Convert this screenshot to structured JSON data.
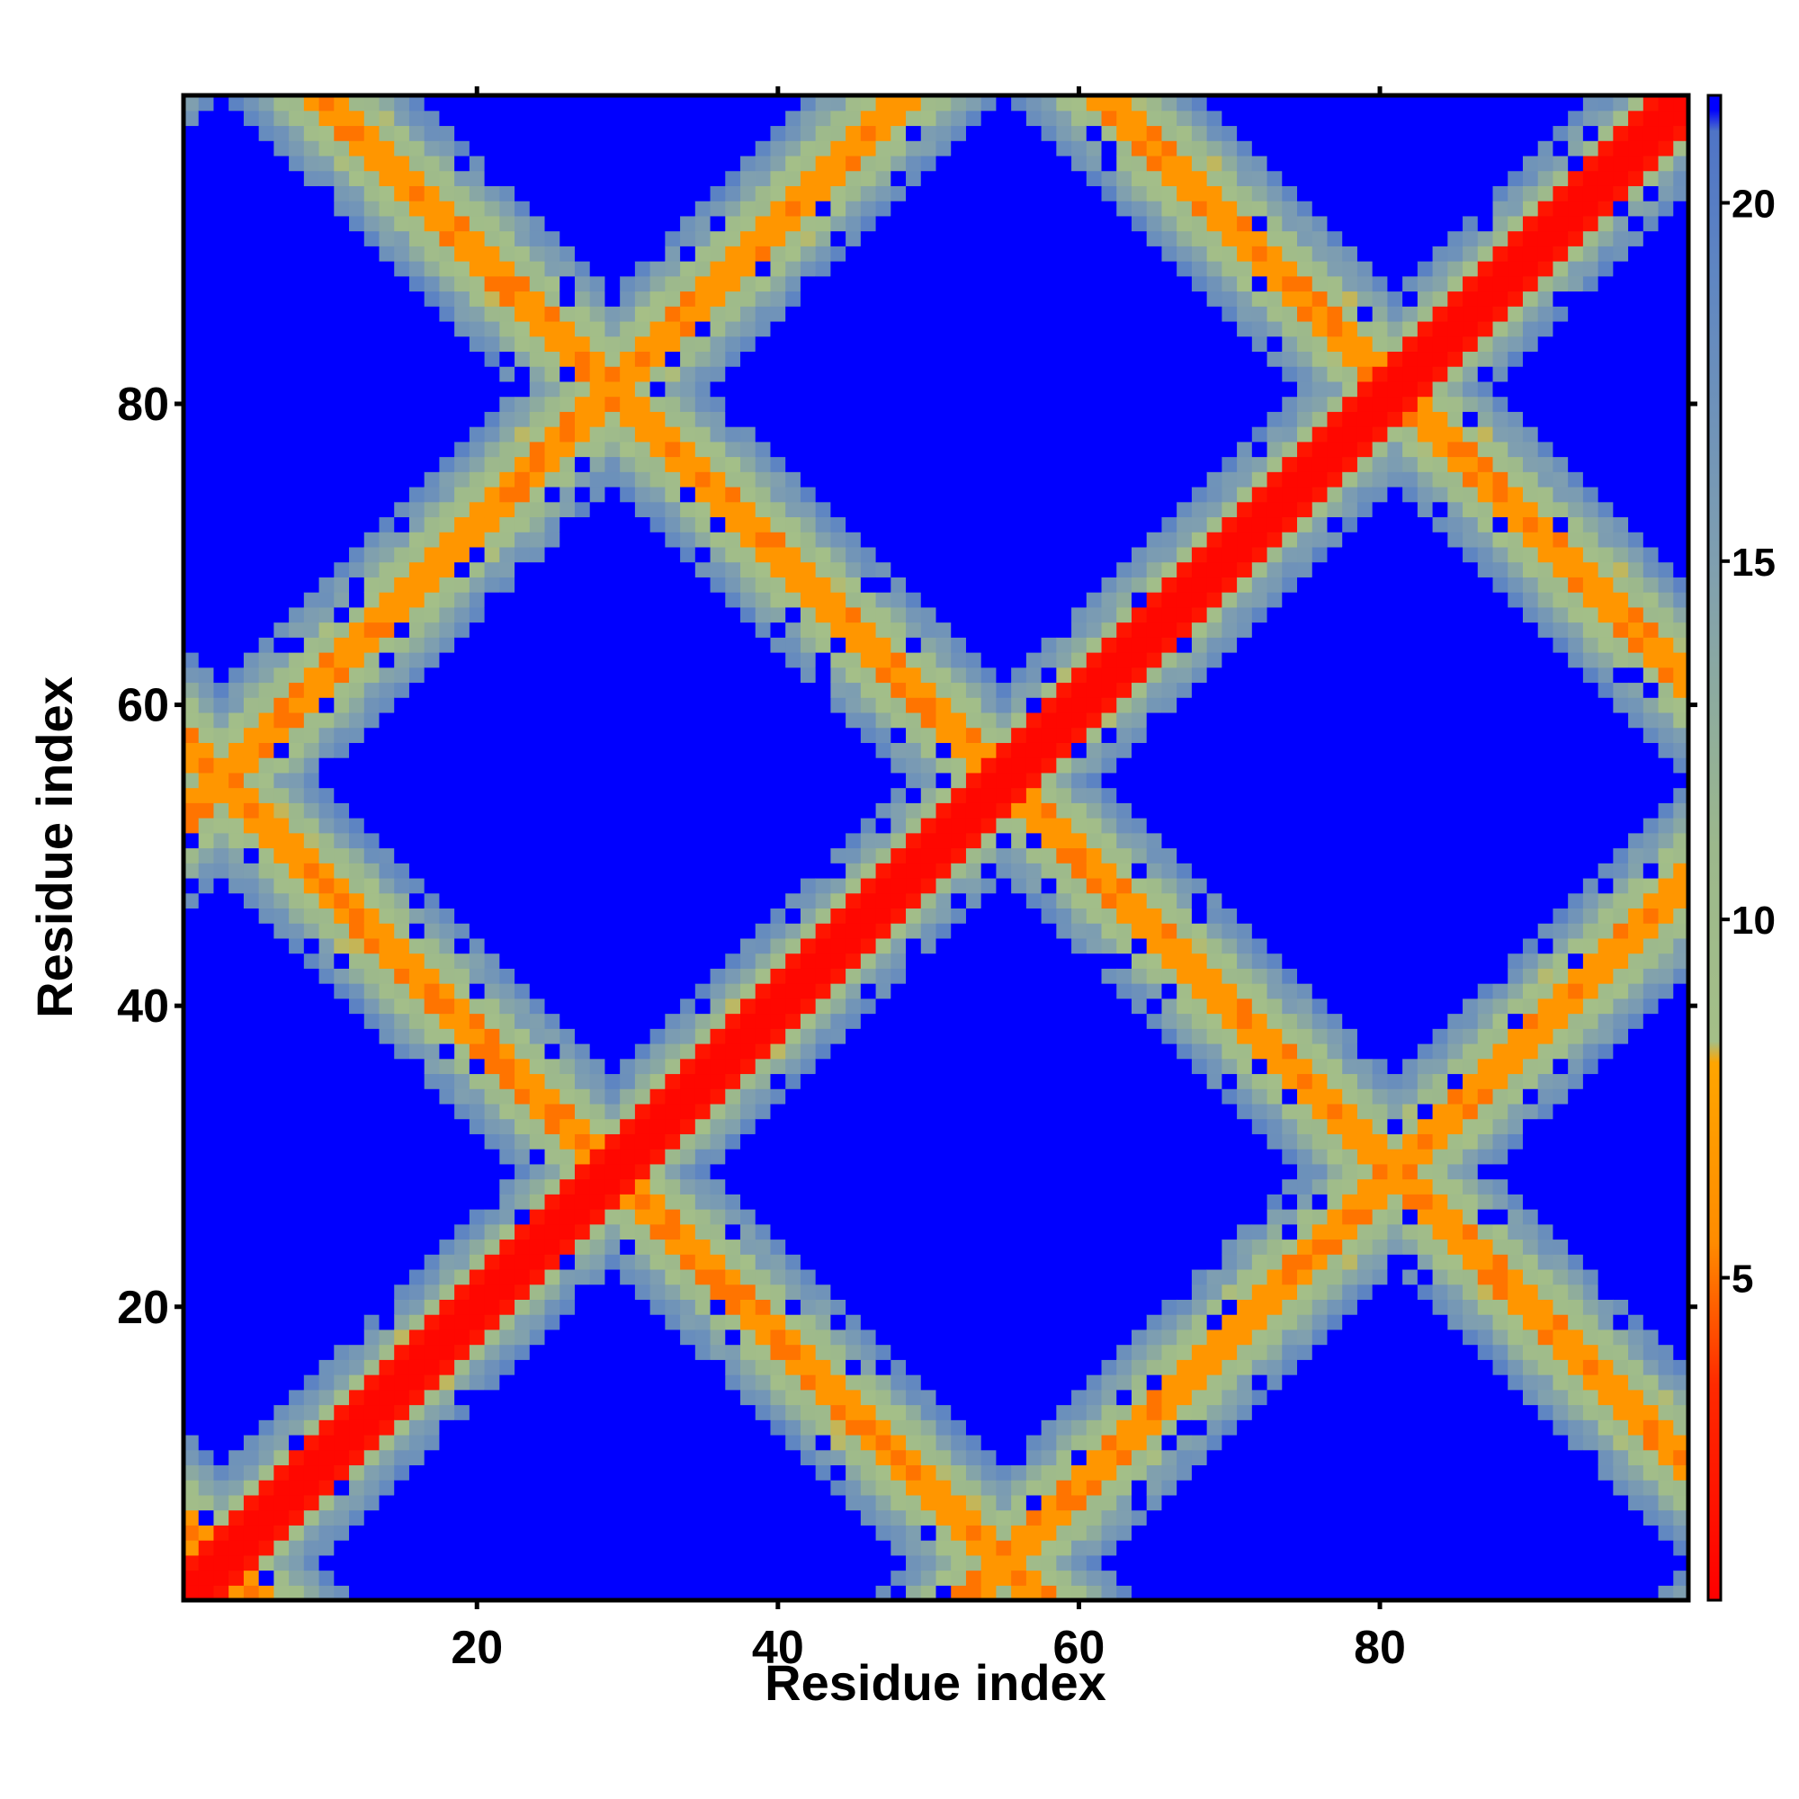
{
  "chart_data": {
    "type": "heatmap",
    "title": "",
    "xlabel": "Residue index",
    "ylabel": "Residue index",
    "n_residues": 100,
    "xlim": [
      1,
      100
    ],
    "ylim": [
      1,
      100
    ],
    "x_ticks": [
      20,
      40,
      60,
      80
    ],
    "x_tick_labels": [
      "20",
      "40",
      "60",
      "80"
    ],
    "y_ticks": [
      20,
      40,
      60,
      80
    ],
    "y_tick_labels": [
      "20",
      "40",
      "60",
      "80"
    ],
    "colorbar": {
      "range": [
        0.5,
        21.5
      ],
      "ticks": [
        5,
        10,
        15,
        20
      ],
      "tick_labels": [
        "5",
        "10",
        "15",
        "20"
      ],
      "stops": [
        {
          "value": 0.5,
          "color": "#ff0000"
        },
        {
          "value": 3.5,
          "color": "#ff2a00"
        },
        {
          "value": 5.5,
          "color": "#ff8c00"
        },
        {
          "value": 8.0,
          "color": "#ffa500"
        },
        {
          "value": 8.3,
          "color": "#a4bf88"
        },
        {
          "value": 11.0,
          "color": "#9cb88c"
        },
        {
          "value": 15.0,
          "color": "#7f9fb0"
        },
        {
          "value": 19.0,
          "color": "#5f86c2"
        },
        {
          "value": 21.0,
          "color": "#4f74c6"
        },
        {
          "value": 21.3,
          "color": "#0000ff"
        }
      ]
    },
    "matrix_description": "Symmetric residue-residue distance map: diagonal band near 1, off-diagonal contact bands forming a lattice pattern, distant regions saturated at 21."
  }
}
